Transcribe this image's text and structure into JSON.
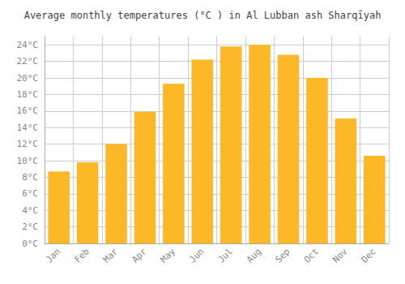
{
  "chart_data": {
    "type": "bar",
    "title": "Average monthly temperatures (°C ) in Al Lubban ash Sharqīyah",
    "categories": [
      "Jan",
      "Feb",
      "Mar",
      "Apr",
      "May",
      "Jun",
      "Jul",
      "Aug",
      "Sep",
      "Oct",
      "Nov",
      "Dec"
    ],
    "values": [
      8.7,
      9.8,
      12.0,
      15.9,
      19.3,
      22.2,
      23.8,
      24.0,
      22.8,
      20.0,
      15.1,
      10.6
    ],
    "color": "#FDB827",
    "ylim": [
      0,
      25
    ],
    "yticks": [
      {
        "value": 0,
        "label": "0°C"
      },
      {
        "value": 2,
        "label": "2°C"
      },
      {
        "value": 4,
        "label": "4°C"
      },
      {
        "value": 6,
        "label": "6°C"
      },
      {
        "value": 8,
        "label": "8°C"
      },
      {
        "value": 10,
        "label": "10°C"
      },
      {
        "value": 12,
        "label": "12°C"
      },
      {
        "value": 14,
        "label": "14°C"
      },
      {
        "value": 16,
        "label": "16°C"
      },
      {
        "value": 18,
        "label": "18°C"
      },
      {
        "value": 20,
        "label": "20°C"
      },
      {
        "value": 22,
        "label": "22°C"
      },
      {
        "value": 24,
        "label": "24°C"
      }
    ],
    "grid": true
  }
}
